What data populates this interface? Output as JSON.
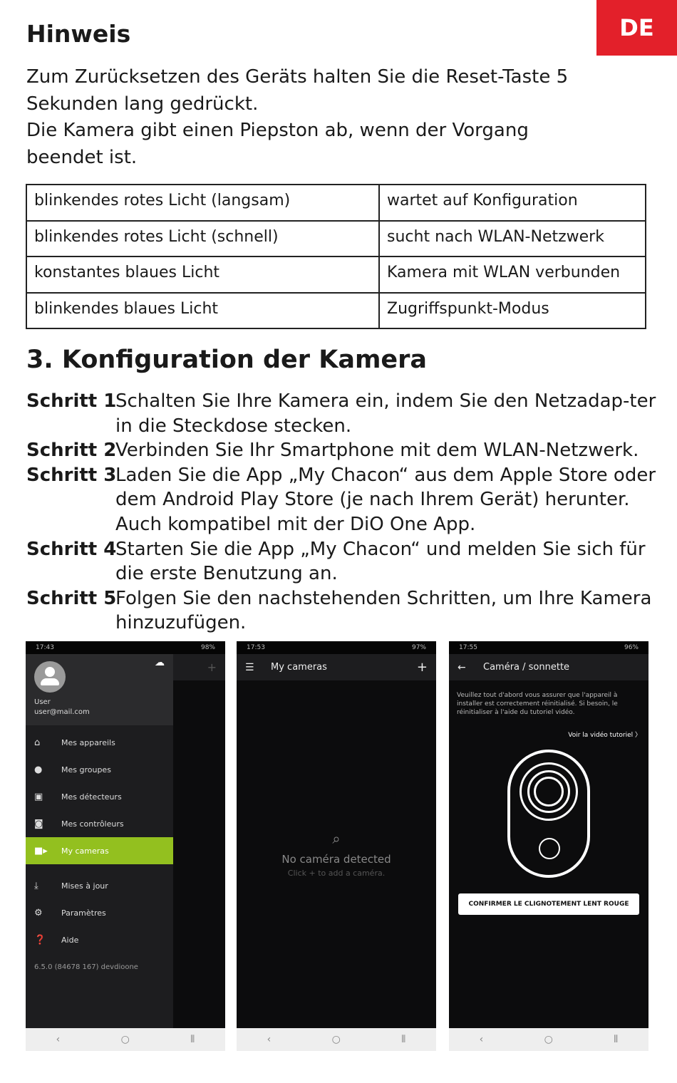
{
  "lang_badge": "DE",
  "note": {
    "title": "Hinweis",
    "lines": [
      "Zum Zurücksetzen des Geräts halten Sie die Reset-Taste 5",
      "Sekunden lang gedrückt.",
      "Die Kamera gibt einen Piepston ab, wenn der Vorgang",
      "beendet ist."
    ]
  },
  "led_table": [
    [
      "blinkendes rotes Licht (langsam)",
      "wartet auf Konfiguration"
    ],
    [
      "blinkendes rotes Licht (schnell)",
      "sucht nach WLAN-Netzwerk"
    ],
    [
      "konstantes blaues Licht",
      "Kamera mit WLAN verbunden"
    ],
    [
      "blinkendes blaues Licht",
      "Zugriffspunkt-Modus"
    ]
  ],
  "section": {
    "title": "3. Konfiguration der Kamera",
    "steps": [
      {
        "label": "Schritt 1",
        "text": "Schalten Sie Ihre Kamera ein, indem Sie den Netzadap-ter in die Steckdose stecken."
      },
      {
        "label": "Schritt 2",
        "text": "Verbinden Sie Ihr Smartphone mit dem WLAN-Netzwerk."
      },
      {
        "label": "Schritt 3",
        "text": "Laden Sie die App „My Chacon“ aus dem Apple Store oder dem Android Play Store (je nach Ihrem Gerät) herunter. Auch kompatibel mit der DiO One App."
      },
      {
        "label": "Schritt 4",
        "text": "Starten Sie die App „My Chacon“ und melden Sie sich für die erste Benutzung an."
      },
      {
        "label": "Schritt 5",
        "text": "Folgen Sie den nachstehenden Schritten, um Ihre Kamera hinzuzufügen."
      }
    ]
  },
  "phone1": {
    "time": "17:43",
    "battery": "98%",
    "user": "User",
    "email": "user@mail.com",
    "menu": [
      "Mes appareils",
      "Mes groupes",
      "Mes détecteurs",
      "Mes contrôleurs",
      "My cameras",
      "Mises à jour",
      "Paramètres",
      "Aide"
    ],
    "version": "6.5.0 (84678 167) devdioone",
    "accent": "#93c01f"
  },
  "phone2": {
    "time": "17:53",
    "battery": "97%",
    "title": "My cameras",
    "empty_title": "No caméra detected",
    "empty_hint": "Click + to add a caméra."
  },
  "phone3": {
    "time": "17:55",
    "battery": "96%",
    "title": "Caméra / sonnette",
    "info": "Veuillez tout d'abord vous assurer que l'appareil à installer est correctement réinitialisé. Si besoin, le réinitialiser à l'aide du tutoriel vidéo.",
    "link": "Voir la vidéo tutoriel 〉",
    "button": "CONFIRMER LE CLIGNOTEMENT LENT ROUGE"
  },
  "navbar": {
    "back": "‹",
    "home": "○",
    "recent": "⦀"
  }
}
